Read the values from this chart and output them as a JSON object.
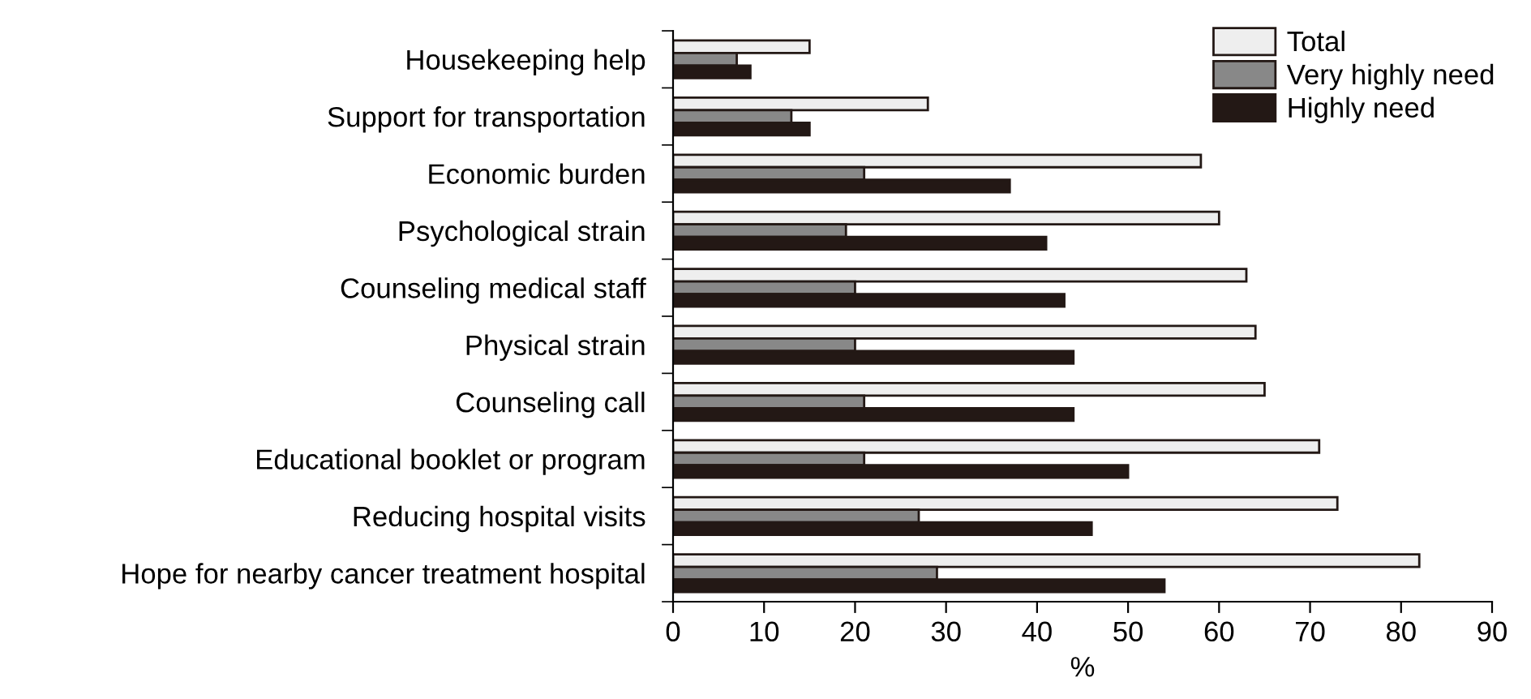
{
  "chart_data": {
    "type": "bar",
    "orientation": "horizontal",
    "xlabel": "%",
    "categories": [
      "Housekeeping help",
      "Support for transportation",
      "Economic burden",
      "Psychological strain",
      "Counseling medical staff",
      "Physical strain",
      "Counseling call",
      "Educational booklet or program",
      "Reducing hospital visits",
      "Hope for nearby cancer treatment hospital"
    ],
    "series": [
      {
        "name": "Total",
        "color": "#eeeeee",
        "values": [
          15,
          28,
          58,
          60,
          63,
          64,
          65,
          71,
          73,
          82
        ]
      },
      {
        "name": "Very highly need",
        "color": "#888888",
        "values": [
          7,
          13,
          21,
          19,
          20,
          20,
          21,
          21,
          27,
          29
        ]
      },
      {
        "name": "Highly need",
        "color": "#231815",
        "values": [
          8.5,
          15,
          37,
          41,
          43,
          44,
          44,
          50,
          46,
          54
        ]
      }
    ],
    "xlim": [
      0,
      90
    ],
    "xticks": [
      0,
      10,
      20,
      30,
      40,
      50,
      60,
      70,
      80,
      90
    ],
    "grid": false,
    "legend": "top right"
  }
}
